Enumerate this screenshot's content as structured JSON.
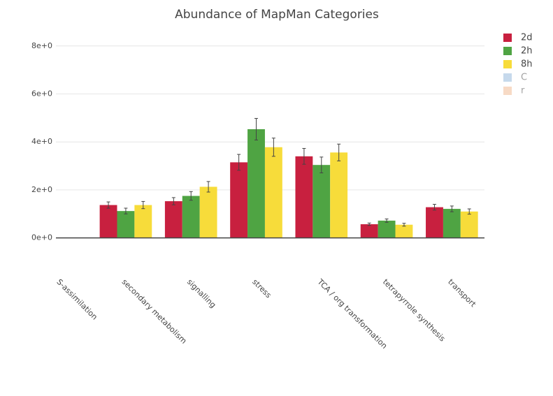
{
  "chart_data": {
    "type": "bar",
    "title": "Abundance of MapMan Categories",
    "categories": [
      "S-assimilation",
      "secondary metabolism",
      "signalling",
      "stress",
      "TCA / org transformation",
      "tetrapyrrole synthesis",
      "transport"
    ],
    "series": [
      {
        "name": "2d",
        "color": "#c8203f",
        "values": [
          null,
          1.37,
          1.53,
          3.15,
          3.4,
          0.57,
          1.28
        ],
        "errors": [
          null,
          0.13,
          0.15,
          0.33,
          0.33,
          0.05,
          0.12
        ]
      },
      {
        "name": "2h",
        "color": "#4fa443",
        "values": [
          null,
          1.12,
          1.75,
          4.53,
          3.04,
          0.72,
          1.21
        ],
        "errors": [
          null,
          0.12,
          0.18,
          0.45,
          0.33,
          0.07,
          0.12
        ]
      },
      {
        "name": "8h",
        "color": "#f7dc3a",
        "values": [
          null,
          1.37,
          2.13,
          3.78,
          3.56,
          0.55,
          1.1
        ],
        "errors": [
          null,
          0.15,
          0.22,
          0.38,
          0.35,
          0.06,
          0.11
        ]
      },
      {
        "name": "C",
        "color": "#8eb4da",
        "visible": "legendonly",
        "values": [
          null,
          null,
          null,
          null,
          null,
          null,
          null
        ]
      },
      {
        "name": "r",
        "color": "#f0b68c",
        "visible": "legendonly",
        "values": [
          null,
          null,
          null,
          null,
          null,
          null,
          null
        ]
      }
    ],
    "ylim": [
      -1,
      8.75
    ],
    "yticks": [
      {
        "value": 0,
        "label": "0e+0"
      },
      {
        "value": 2,
        "label": "2e+0"
      },
      {
        "value": 4,
        "label": "4e+0"
      },
      {
        "value": 6,
        "label": "6e+0"
      },
      {
        "value": 8,
        "label": "8e+0"
      }
    ],
    "grid": true,
    "legend": "right"
  }
}
